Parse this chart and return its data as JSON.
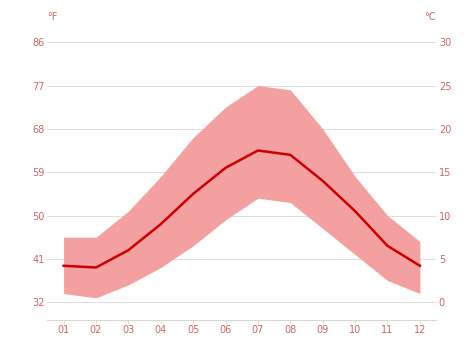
{
  "months": [
    1,
    2,
    3,
    4,
    5,
    6,
    7,
    8,
    9,
    10,
    11,
    12
  ],
  "month_labels": [
    "01",
    "02",
    "03",
    "04",
    "05",
    "06",
    "07",
    "08",
    "09",
    "10",
    "11",
    "12"
  ],
  "avg_temp_c": [
    4.2,
    4.0,
    6.0,
    9.0,
    12.5,
    15.5,
    17.5,
    17.0,
    14.0,
    10.5,
    6.5,
    4.2
  ],
  "max_temp_c": [
    7.5,
    7.5,
    10.5,
    14.5,
    19.0,
    22.5,
    25.0,
    24.5,
    20.0,
    14.5,
    10.0,
    7.0
  ],
  "min_temp_c": [
    1.0,
    0.5,
    2.0,
    4.0,
    6.5,
    9.5,
    12.0,
    11.5,
    8.5,
    5.5,
    2.5,
    1.0
  ],
  "line_color": "#cc0000",
  "band_color": "#f5a0a0",
  "background_color": "#ffffff",
  "grid_color": "#d8d8d8",
  "axis_label_color": "#cc6666",
  "yticks_f": [
    32,
    41,
    50,
    59,
    68,
    77,
    86
  ],
  "yticks_c": [
    0,
    5,
    10,
    15,
    20,
    25,
    30
  ],
  "ylim_c": [
    -2,
    32
  ],
  "xlabel_fontsize": 7,
  "ylabel_fontsize": 7
}
